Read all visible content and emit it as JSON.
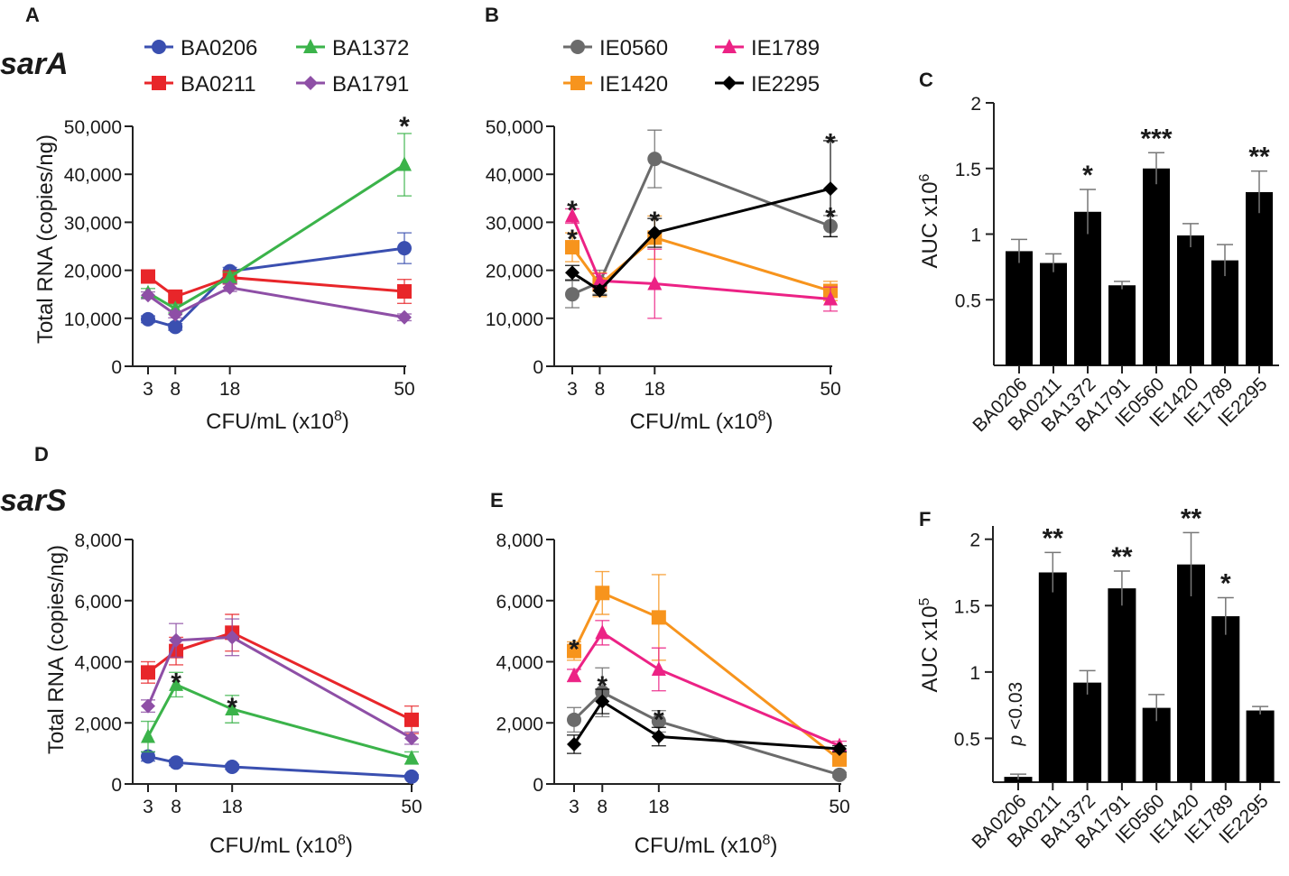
{
  "figure": {
    "gene_top": "sarA",
    "gene_bottom": "sarS",
    "panel_letters": [
      "A",
      "B",
      "C",
      "D",
      "E",
      "F"
    ]
  },
  "colors": {
    "BA0206": "#3a4fb0",
    "BA0211": "#e8262a",
    "BA1372": "#3bb34a",
    "BA1791": "#8e4fa6",
    "IE0560": "#6b6b6b",
    "IE1420": "#f7941d",
    "IE1789": "#ec2285",
    "IE2295": "#000000",
    "bar": "#000000",
    "errorbar": "#777777"
  },
  "chart_data": [
    {
      "id": "A",
      "type": "line",
      "title": "sarA",
      "xlabel": "CFU/mL (x10",
      "xlabel_sup": "8",
      "xlabel_end": ")",
      "ylabel": "Total RNA (copies/ng)",
      "x": [
        3,
        8,
        18,
        50
      ],
      "xlim": [
        0,
        50
      ],
      "ylim": [
        0,
        50000
      ],
      "yticks": [
        0,
        10000,
        20000,
        30000,
        40000,
        50000
      ],
      "ytick_labels": [
        "0",
        "10,000",
        "20,000",
        "30,000",
        "40,000",
        "50,000"
      ],
      "xtick_labels": [
        "3",
        "8",
        "18",
        "50"
      ],
      "legend": {
        "position": "top",
        "columns": [
          [
            "BA0206",
            "BA0211"
          ],
          [
            "BA1372",
            "BA1791"
          ]
        ]
      },
      "series": [
        {
          "name": "BA0206",
          "marker": "circle",
          "values": [
            9800,
            8200,
            19800,
            24600
          ],
          "err": [
            700,
            700,
            800,
            3200
          ]
        },
        {
          "name": "BA0211",
          "marker": "square",
          "values": [
            18700,
            14500,
            18500,
            15600
          ],
          "err": [
            900,
            900,
            1200,
            2500
          ]
        },
        {
          "name": "BA1372",
          "marker": "triangle",
          "values": [
            15300,
            12000,
            18600,
            42000
          ],
          "err": [
            900,
            900,
            1000,
            6500
          ]
        },
        {
          "name": "BA1791",
          "marker": "diamond",
          "values": [
            14800,
            10800,
            16400,
            10200
          ],
          "err": [
            700,
            700,
            800,
            700
          ]
        }
      ],
      "annotations": [
        {
          "text": "*",
          "x": 50,
          "y": 51500
        }
      ]
    },
    {
      "id": "B",
      "type": "line",
      "xlabel": "CFU/mL (x10",
      "xlabel_sup": "8",
      "xlabel_end": ")",
      "x": [
        3,
        8,
        18,
        50
      ],
      "xlim": [
        0,
        50
      ],
      "ylim": [
        0,
        50000
      ],
      "yticks": [
        0,
        10000,
        20000,
        30000,
        40000,
        50000
      ],
      "ytick_labels": [
        "0",
        "10,000",
        "20,000",
        "30,000",
        "40,000",
        "50,000"
      ],
      "xtick_labels": [
        "3",
        "8",
        "18",
        "50"
      ],
      "legend": {
        "position": "top",
        "columns": [
          [
            "IE0560",
            "IE1420"
          ],
          [
            "IE1789",
            "IE2295"
          ]
        ]
      },
      "series": [
        {
          "name": "IE0560",
          "marker": "circle",
          "values": [
            15000,
            17500,
            43200,
            29200
          ],
          "err": [
            2800,
            2500,
            6000,
            2200
          ]
        },
        {
          "name": "IE1420",
          "marker": "square",
          "values": [
            24800,
            17000,
            26800,
            15700
          ],
          "err": [
            3000,
            2500,
            4500,
            2000
          ]
        },
        {
          "name": "IE1789",
          "marker": "triangle",
          "values": [
            31300,
            17800,
            17200,
            14000
          ],
          "err": [
            1500,
            1500,
            7200,
            2500
          ]
        },
        {
          "name": "IE2295",
          "marker": "diamond",
          "values": [
            19500,
            15800,
            27800,
            37000
          ],
          "err": [
            1500,
            1000,
            3000,
            10000
          ]
        }
      ],
      "annotations": [
        {
          "text": "*",
          "x": 3,
          "y": 34000
        },
        {
          "text": "*",
          "x": 3,
          "y": 28000
        },
        {
          "text": "*",
          "x": 18,
          "y": 31800
        },
        {
          "text": "*",
          "x": 50,
          "y": 48000
        },
        {
          "text": "*",
          "x": 50,
          "y": 32600
        }
      ]
    },
    {
      "id": "C",
      "type": "bar",
      "ylabel": "AUC x10",
      "ylabel_sup": "6",
      "categories": [
        "BA0206",
        "BA0211",
        "BA1372",
        "BA1791",
        "IE0560",
        "IE1420",
        "IE1789",
        "IE2295"
      ],
      "values": [
        0.87,
        0.78,
        1.17,
        0.61,
        1.5,
        0.99,
        0.8,
        1.32
      ],
      "err": [
        0.09,
        0.07,
        0.17,
        0.03,
        0.12,
        0.09,
        0.12,
        0.16
      ],
      "ylim": [
        0,
        2
      ],
      "yticks": [
        0.5,
        1,
        1.5,
        2
      ],
      "ytick_labels": [
        "0.5",
        "1",
        "1.5",
        "2"
      ],
      "annotations": [
        {
          "text": "*",
          "category": "BA1372"
        },
        {
          "text": "***",
          "category": "IE0560"
        },
        {
          "text": "**",
          "category": "IE2295"
        }
      ]
    },
    {
      "id": "D",
      "type": "line",
      "title": "sarS",
      "xlabel": "CFU/mL (x10",
      "xlabel_sup": "8",
      "xlabel_end": ")",
      "ylabel": "Total RNA (copies/ng)",
      "x": [
        3,
        8,
        18,
        50
      ],
      "xlim": [
        0,
        50
      ],
      "ylim": [
        0,
        8000
      ],
      "yticks": [
        0,
        2000,
        4000,
        6000,
        8000
      ],
      "ytick_labels": [
        "0",
        "2,000",
        "4,000",
        "6,000",
        "8,000"
      ],
      "xtick_labels": [
        "3",
        "8",
        "18",
        "50"
      ],
      "series": [
        {
          "name": "BA0206",
          "marker": "circle",
          "values": [
            900,
            700,
            560,
            240
          ],
          "err": [
            150,
            100,
            80,
            60
          ]
        },
        {
          "name": "BA0211",
          "marker": "square",
          "values": [
            3650,
            4350,
            4950,
            2100
          ],
          "err": [
            350,
            450,
            600,
            450
          ]
        },
        {
          "name": "BA1372",
          "marker": "triangle",
          "values": [
            1550,
            3250,
            2450,
            850
          ],
          "err": [
            500,
            400,
            450,
            200
          ]
        },
        {
          "name": "BA1791",
          "marker": "diamond",
          "values": [
            2550,
            4700,
            4800,
            1500
          ],
          "err": [
            200,
            550,
            600,
            200
          ]
        }
      ],
      "annotations": [
        {
          "text": "*",
          "x": 8,
          "y": 3550
        },
        {
          "text": "*",
          "x": 18,
          "y": 2750
        }
      ]
    },
    {
      "id": "E",
      "type": "line",
      "xlabel": "CFU/mL (x10",
      "xlabel_sup": "8",
      "xlabel_end": ")",
      "x": [
        3,
        8,
        18,
        50
      ],
      "xlim": [
        0,
        50
      ],
      "ylim": [
        0,
        8000
      ],
      "yticks": [
        0,
        2000,
        4000,
        6000,
        8000
      ],
      "ytick_labels": [
        "0",
        "2,000",
        "4,000",
        "6,000",
        "8,000"
      ],
      "xtick_labels": [
        "3",
        "8",
        "18",
        "50"
      ],
      "series": [
        {
          "name": "IE0560",
          "marker": "circle",
          "values": [
            2100,
            3000,
            2050,
            300
          ],
          "err": [
            400,
            800,
            350,
            80
          ]
        },
        {
          "name": "IE1420",
          "marker": "square",
          "values": [
            4350,
            6250,
            5450,
            800
          ],
          "err": [
            300,
            700,
            1400,
            200
          ]
        },
        {
          "name": "IE1789",
          "marker": "triangle",
          "values": [
            3550,
            4950,
            3750,
            1250
          ],
          "err": [
            200,
            400,
            700,
            150
          ]
        },
        {
          "name": "IE2295",
          "marker": "diamond",
          "values": [
            1300,
            2700,
            1550,
            1150
          ],
          "err": [
            300,
            400,
            300,
            100
          ]
        }
      ],
      "annotations": [
        {
          "text": "*",
          "x": 3,
          "y": 4650
        },
        {
          "text": "*",
          "x": 8,
          "y": 3450
        },
        {
          "text": "*",
          "x": 18,
          "y": 2350
        }
      ]
    },
    {
      "id": "F",
      "type": "bar",
      "ylabel": "AUC x10",
      "ylabel_sup": "5",
      "categories": [
        "BA0206",
        "BA0211",
        "BA1372",
        "BA1791",
        "IE0560",
        "IE1420",
        "IE1789",
        "IE2295"
      ],
      "values": [
        0.21,
        1.75,
        0.92,
        1.63,
        0.73,
        1.81,
        1.42,
        0.71
      ],
      "err": [
        0.02,
        0.15,
        0.09,
        0.13,
        0.1,
        0.24,
        0.14,
        0.03
      ],
      "ylim": [
        0.17,
        2.1
      ],
      "yticks": [
        0.5,
        1,
        1.5,
        2
      ],
      "ytick_labels": [
        "0.5",
        "1",
        "1.5",
        "2"
      ],
      "annotations": [
        {
          "text": "**",
          "category": "BA0211"
        },
        {
          "text": "**",
          "category": "BA1791"
        },
        {
          "text": "**",
          "category": "IE1420"
        },
        {
          "text": "*",
          "category": "IE1789"
        }
      ],
      "note": {
        "italic": "p",
        "rest": " <0.03",
        "category": "BA0206"
      }
    }
  ]
}
